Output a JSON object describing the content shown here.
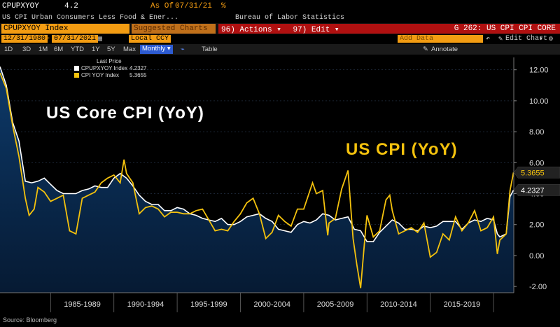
{
  "header": {
    "ticker": "CPUPXYOY",
    "value": "4.2",
    "asof_label": "As Of",
    "asof_date": "07/31/21",
    "pct": "%",
    "description": "US CPI Urban Consumers Less Food & Ener...",
    "source_agency": "Bureau of Labor Statistics"
  },
  "command_bar": {
    "security": "CPUPXYOY Index",
    "suggested": "Suggested Charts",
    "actions_num": "96)",
    "actions_label": "Actions",
    "edit_num": "97)",
    "edit_label": "Edit",
    "page_title": "G 262: US CPI CPI CORE"
  },
  "date_range": {
    "start": "12/31/1980",
    "end": "07/31/2021",
    "currency": "Local CCY",
    "add_data": "Add Data",
    "edit_chart": "Edit Chart"
  },
  "toolbar": {
    "periods": [
      "1D",
      "3D",
      "1M",
      "6M",
      "YTD",
      "1Y",
      "5Y",
      "Max"
    ],
    "frequency": "Monthly",
    "table_label": "Table",
    "annotate_label": "Annotate"
  },
  "legend": {
    "title": "Last Price",
    "items": [
      {
        "label": "CPUPXYOY Index",
        "value": "4.2327",
        "color": "#ffffff"
      },
      {
        "label": "CPI YOY Index",
        "value": "5.3655",
        "color": "#f4c20d"
      }
    ]
  },
  "annotations": {
    "core": "US Core CPI (YoY)",
    "cpi": "US CPI (YoY)"
  },
  "footer": {
    "source": "Source: Bloomberg"
  },
  "colors": {
    "core_line": "#ffffff",
    "cpi_line": "#f4c20d",
    "area_top": "#0d3a6a",
    "area_bottom": "#061a33",
    "accent_amber": "#f39c12",
    "command_red": "#b01010"
  },
  "chart_data": {
    "type": "line",
    "x_unit": "year",
    "xlim": [
      1981,
      2021.6
    ],
    "ylim": [
      -2.4,
      12.8
    ],
    "yticks": [
      -2,
      0,
      2,
      4,
      6,
      8,
      10,
      12
    ],
    "ytick_labels": [
      "-2.00",
      "0.00",
      "2.00",
      "4.00",
      "6.00",
      "8.00",
      "10.00",
      "12.00"
    ],
    "xtick_labels": [
      "1985-1989",
      "1990-1994",
      "1995-1999",
      "2000-2004",
      "2005-2009",
      "2010-2014",
      "2015-2019"
    ],
    "xtick_centers": [
      1987.5,
      1992.5,
      1997.5,
      2002.5,
      2007.5,
      2012.5,
      2017.5
    ],
    "xtick_separators": [
      1985,
      1990,
      1995,
      2000,
      2005,
      2010,
      2015,
      2020
    ],
    "last_labels": [
      {
        "series": 1,
        "value": 5.3655,
        "text": "5.3655"
      },
      {
        "series": 0,
        "value": 4.2327,
        "text": "4.2327"
      }
    ],
    "series": [
      {
        "name": "CPUPXYOY Index",
        "x": [
          1981.0,
          1981.5,
          1982.0,
          1982.5,
          1983.0,
          1983.5,
          1984.0,
          1984.5,
          1985.0,
          1985.5,
          1986.0,
          1986.5,
          1987.0,
          1987.5,
          1988.0,
          1988.5,
          1989.0,
          1989.5,
          1990.0,
          1990.5,
          1991.0,
          1991.5,
          1992.0,
          1992.5,
          1993.0,
          1993.5,
          1994.0,
          1994.5,
          1995.0,
          1995.5,
          1996.0,
          1996.5,
          1997.0,
          1997.5,
          1998.0,
          1998.5,
          1999.0,
          1999.5,
          2000.0,
          2000.5,
          2001.0,
          2001.5,
          2002.0,
          2002.5,
          2003.0,
          2003.5,
          2004.0,
          2004.5,
          2005.0,
          2005.5,
          2006.0,
          2006.5,
          2007.0,
          2007.5,
          2008.0,
          2008.5,
          2009.0,
          2009.5,
          2010.0,
          2010.5,
          2011.0,
          2011.5,
          2012.0,
          2012.5,
          2013.0,
          2013.5,
          2014.0,
          2014.5,
          2015.0,
          2015.5,
          2016.0,
          2016.5,
          2017.0,
          2017.5,
          2018.0,
          2018.5,
          2019.0,
          2019.5,
          2020.0,
          2020.3,
          2020.5,
          2021.0,
          2021.3,
          2021.58
        ],
        "values": [
          12.2,
          11.0,
          8.6,
          7.4,
          4.8,
          4.7,
          4.8,
          5.0,
          4.6,
          4.2,
          4.0,
          4.0,
          4.0,
          4.2,
          4.3,
          4.5,
          4.4,
          4.4,
          5.0,
          5.3,
          5.0,
          4.5,
          3.9,
          3.5,
          3.3,
          3.3,
          2.9,
          2.9,
          3.1,
          3.0,
          2.7,
          2.6,
          2.4,
          2.3,
          2.2,
          2.4,
          2.0,
          2.0,
          2.2,
          2.5,
          2.6,
          2.7,
          2.4,
          2.2,
          1.7,
          1.6,
          1.5,
          2.0,
          2.2,
          2.1,
          2.3,
          2.7,
          2.6,
          2.3,
          2.4,
          2.5,
          1.7,
          1.6,
          0.9,
          0.9,
          1.5,
          1.9,
          2.3,
          2.1,
          1.7,
          1.7,
          1.6,
          1.9,
          1.8,
          1.9,
          2.2,
          2.2,
          2.2,
          1.7,
          2.1,
          2.3,
          2.2,
          2.4,
          2.3,
          1.4,
          1.2,
          1.4,
          3.8,
          4.2327
        ]
      },
      {
        "name": "CPI YOY Index",
        "x": [
          1981.0,
          1981.5,
          1982.0,
          1982.5,
          1983.0,
          1983.3,
          1983.7,
          1984.0,
          1984.5,
          1985.0,
          1985.5,
          1986.0,
          1986.5,
          1987.0,
          1987.5,
          1988.0,
          1988.5,
          1989.0,
          1989.5,
          1990.0,
          1990.5,
          1990.8,
          1991.0,
          1991.5,
          1992.0,
          1992.5,
          1993.0,
          1993.5,
          1994.0,
          1994.5,
          1995.0,
          1995.5,
          1996.0,
          1996.5,
          1997.0,
          1997.5,
          1998.0,
          1998.5,
          1999.0,
          1999.5,
          2000.0,
          2000.5,
          2001.0,
          2001.5,
          2002.0,
          2002.5,
          2003.0,
          2003.5,
          2004.0,
          2004.5,
          2005.0,
          2005.7,
          2006.0,
          2006.5,
          2006.9,
          2007.0,
          2007.5,
          2008.0,
          2008.5,
          2008.9,
          2009.2,
          2009.5,
          2009.9,
          2010.0,
          2010.5,
          2011.0,
          2011.5,
          2011.8,
          2012.0,
          2012.5,
          2013.0,
          2013.5,
          2014.0,
          2014.5,
          2015.0,
          2015.5,
          2016.0,
          2016.5,
          2017.0,
          2017.5,
          2018.0,
          2018.5,
          2019.0,
          2019.5,
          2020.0,
          2020.3,
          2020.5,
          2021.0,
          2021.3,
          2021.58
        ],
        "values": [
          11.8,
          10.8,
          8.4,
          6.4,
          3.7,
          2.6,
          3.0,
          4.4,
          4.1,
          3.5,
          3.7,
          3.9,
          1.6,
          1.4,
          3.7,
          3.9,
          4.1,
          4.7,
          5.0,
          5.2,
          4.7,
          6.2,
          5.3,
          4.7,
          2.7,
          3.1,
          3.2,
          3.0,
          2.5,
          2.8,
          2.8,
          2.7,
          2.7,
          2.9,
          3.0,
          2.3,
          1.6,
          1.7,
          1.6,
          2.2,
          2.7,
          3.4,
          3.7,
          2.7,
          1.1,
          1.5,
          2.6,
          2.2,
          1.9,
          3.0,
          3.0,
          4.7,
          4.0,
          4.2,
          1.3,
          2.1,
          2.4,
          4.3,
          5.5,
          1.1,
          -0.6,
          -2.1,
          1.8,
          2.6,
          1.2,
          1.6,
          3.6,
          3.9,
          2.9,
          1.4,
          1.6,
          1.8,
          1.5,
          2.1,
          -0.1,
          0.2,
          1.4,
          1.0,
          2.5,
          1.6,
          2.1,
          2.9,
          1.6,
          1.8,
          2.5,
          0.1,
          1.0,
          1.4,
          4.2,
          5.3655
        ]
      }
    ]
  }
}
